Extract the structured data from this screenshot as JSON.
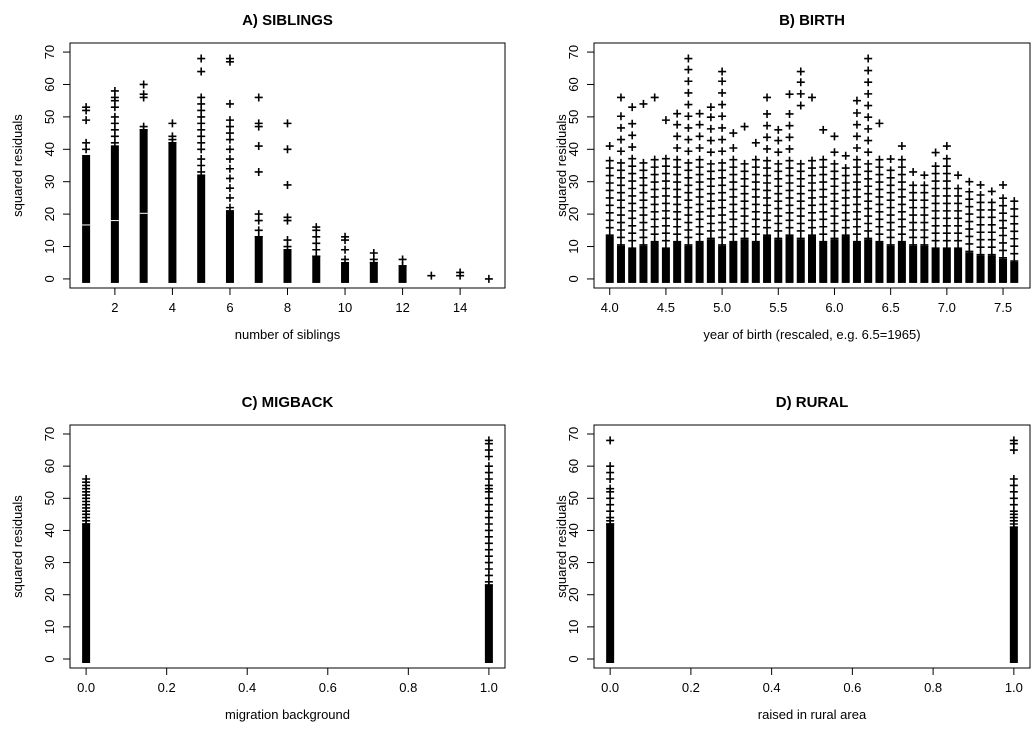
{
  "figure_title": "",
  "colors": {
    "marks": "#000000",
    "background": "#ffffff"
  },
  "chart_data": [
    {
      "type": "scatter",
      "marker": "plus",
      "title": "A) SIBLINGS",
      "xlabel": "number of siblings",
      "ylabel": "squared residuals",
      "xlim": [
        1,
        15
      ],
      "ylim": [
        0,
        70
      ],
      "xticks": [
        2,
        4,
        6,
        8,
        10,
        12,
        14
      ],
      "yticks": [
        0,
        10,
        20,
        30,
        40,
        50,
        60,
        70
      ],
      "dense_ranges": [
        {
          "x": 1,
          "y": [
            0,
            37
          ]
        },
        {
          "x": 2,
          "y": [
            0,
            40
          ]
        },
        {
          "x": 3,
          "y": [
            0,
            45
          ]
        },
        {
          "x": 4,
          "y": [
            0,
            41
          ]
        },
        {
          "x": 5,
          "y": [
            0,
            31
          ]
        },
        {
          "x": 6,
          "y": [
            0,
            20
          ]
        },
        {
          "x": 7,
          "y": [
            0,
            12
          ]
        },
        {
          "x": 8,
          "y": [
            0,
            8
          ]
        },
        {
          "x": 9,
          "y": [
            0,
            6
          ]
        },
        {
          "x": 10,
          "y": [
            0,
            4
          ]
        },
        {
          "x": 11,
          "y": [
            0,
            4
          ]
        },
        {
          "x": 12,
          "y": [
            0,
            3
          ]
        }
      ],
      "points": [
        [
          1,
          53
        ],
        [
          1,
          52
        ],
        [
          1,
          49
        ],
        [
          1,
          42
        ],
        [
          1,
          40
        ],
        [
          2,
          58
        ],
        [
          2,
          56
        ],
        [
          2,
          55
        ],
        [
          2,
          53
        ],
        [
          2,
          50
        ],
        [
          2,
          48
        ],
        [
          2,
          46
        ],
        [
          2,
          44
        ],
        [
          2,
          42
        ],
        [
          3,
          60
        ],
        [
          3,
          57
        ],
        [
          3,
          56
        ],
        [
          3,
          47
        ],
        [
          3,
          46
        ],
        [
          4,
          48
        ],
        [
          4,
          44
        ],
        [
          4,
          43
        ],
        [
          4,
          42
        ],
        [
          5,
          68
        ],
        [
          5,
          64
        ],
        [
          5,
          56
        ],
        [
          5,
          54
        ],
        [
          5,
          52
        ],
        [
          5,
          50
        ],
        [
          5,
          48
        ],
        [
          5,
          46
        ],
        [
          5,
          44
        ],
        [
          5,
          42
        ],
        [
          5,
          40
        ],
        [
          5,
          37
        ],
        [
          5,
          35
        ],
        [
          5,
          33
        ],
        [
          6,
          68
        ],
        [
          6,
          67
        ],
        [
          6,
          54
        ],
        [
          6,
          49
        ],
        [
          6,
          47
        ],
        [
          6,
          45
        ],
        [
          6,
          43
        ],
        [
          6,
          40
        ],
        [
          6,
          37
        ],
        [
          6,
          34
        ],
        [
          6,
          31
        ],
        [
          6,
          28
        ],
        [
          6,
          25
        ],
        [
          6,
          22
        ],
        [
          7,
          56
        ],
        [
          7,
          48
        ],
        [
          7,
          47
        ],
        [
          7,
          41
        ],
        [
          7,
          33
        ],
        [
          7,
          20
        ],
        [
          7,
          18
        ],
        [
          7,
          15
        ],
        [
          7,
          13
        ],
        [
          8,
          48
        ],
        [
          8,
          40
        ],
        [
          8,
          29
        ],
        [
          8,
          19
        ],
        [
          8,
          18
        ],
        [
          8,
          12
        ],
        [
          8,
          10
        ],
        [
          9,
          16
        ],
        [
          9,
          15
        ],
        [
          9,
          13
        ],
        [
          9,
          11
        ],
        [
          9,
          9
        ],
        [
          9,
          7
        ],
        [
          10,
          13
        ],
        [
          10,
          12
        ],
        [
          10,
          9
        ],
        [
          10,
          6
        ],
        [
          11,
          8
        ],
        [
          11,
          6
        ],
        [
          11,
          5
        ],
        [
          12,
          6
        ],
        [
          12,
          4
        ],
        [
          13,
          1
        ],
        [
          14,
          2
        ],
        [
          14,
          1
        ],
        [
          15,
          0
        ]
      ]
    },
    {
      "type": "scatter",
      "marker": "plus",
      "title": "B) BIRTH",
      "xlabel": "year of birth (rescaled, e.g. 6.5=1965)",
      "ylabel": "squared residuals",
      "xlim": [
        4.0,
        7.6
      ],
      "ylim": [
        0,
        70
      ],
      "xticks": [
        4.0,
        4.5,
        5.0,
        5.5,
        6.0,
        6.5,
        7.0,
        7.5
      ],
      "yticks": [
        0,
        10,
        20,
        30,
        40,
        50,
        60,
        70
      ],
      "x_step": 0.1,
      "dense_ranges": [
        {
          "x": 4.0,
          "y": [
            0,
            12
          ]
        },
        {
          "x": 4.1,
          "y": [
            0,
            9
          ]
        },
        {
          "x": 4.2,
          "y": [
            0,
            8
          ]
        },
        {
          "x": 4.3,
          "y": [
            0,
            9
          ]
        },
        {
          "x": 4.4,
          "y": [
            0,
            10
          ]
        },
        {
          "x": 4.5,
          "y": [
            0,
            8
          ]
        },
        {
          "x": 4.6,
          "y": [
            0,
            10
          ]
        },
        {
          "x": 4.7,
          "y": [
            0,
            9
          ]
        },
        {
          "x": 4.8,
          "y": [
            0,
            10
          ]
        },
        {
          "x": 4.9,
          "y": [
            0,
            11
          ]
        },
        {
          "x": 5.0,
          "y": [
            0,
            9
          ]
        },
        {
          "x": 5.1,
          "y": [
            0,
            10
          ]
        },
        {
          "x": 5.2,
          "y": [
            0,
            11
          ]
        },
        {
          "x": 5.3,
          "y": [
            0,
            10
          ]
        },
        {
          "x": 5.4,
          "y": [
            0,
            12
          ]
        },
        {
          "x": 5.5,
          "y": [
            0,
            11
          ]
        },
        {
          "x": 5.6,
          "y": [
            0,
            12
          ]
        },
        {
          "x": 5.7,
          "y": [
            0,
            11
          ]
        },
        {
          "x": 5.8,
          "y": [
            0,
            12
          ]
        },
        {
          "x": 5.9,
          "y": [
            0,
            10
          ]
        },
        {
          "x": 6.0,
          "y": [
            0,
            11
          ]
        },
        {
          "x": 6.1,
          "y": [
            0,
            12
          ]
        },
        {
          "x": 6.2,
          "y": [
            0,
            10
          ]
        },
        {
          "x": 6.3,
          "y": [
            0,
            11
          ]
        },
        {
          "x": 6.4,
          "y": [
            0,
            10
          ]
        },
        {
          "x": 6.5,
          "y": [
            0,
            9
          ]
        },
        {
          "x": 6.6,
          "y": [
            0,
            10
          ]
        },
        {
          "x": 6.7,
          "y": [
            0,
            9
          ]
        },
        {
          "x": 6.8,
          "y": [
            0,
            9
          ]
        },
        {
          "x": 6.9,
          "y": [
            0,
            8
          ]
        },
        {
          "x": 7.0,
          "y": [
            0,
            8
          ]
        },
        {
          "x": 7.1,
          "y": [
            0,
            8
          ]
        },
        {
          "x": 7.2,
          "y": [
            0,
            7
          ]
        },
        {
          "x": 7.3,
          "y": [
            0,
            6
          ]
        },
        {
          "x": 7.4,
          "y": [
            0,
            6
          ]
        },
        {
          "x": 7.5,
          "y": [
            0,
            5
          ]
        },
        {
          "x": 7.6,
          "y": [
            0,
            4
          ]
        }
      ],
      "column_max": [
        [
          4.0,
          41
        ],
        [
          4.1,
          56
        ],
        [
          4.2,
          53
        ],
        [
          4.3,
          54
        ],
        [
          4.4,
          56
        ],
        [
          4.5,
          49
        ],
        [
          4.6,
          51
        ],
        [
          4.7,
          68
        ],
        [
          4.8,
          51
        ],
        [
          4.9,
          53
        ],
        [
          5.0,
          64
        ],
        [
          5.1,
          45
        ],
        [
          5.2,
          47
        ],
        [
          5.3,
          42
        ],
        [
          5.4,
          56
        ],
        [
          5.5,
          46
        ],
        [
          5.6,
          57
        ],
        [
          5.7,
          64
        ],
        [
          5.8,
          56
        ],
        [
          5.9,
          46
        ],
        [
          6.0,
          44
        ],
        [
          6.1,
          38
        ],
        [
          6.2,
          55
        ],
        [
          6.3,
          68
        ],
        [
          6.4,
          48
        ],
        [
          6.5,
          37
        ],
        [
          6.6,
          41
        ],
        [
          6.7,
          33
        ],
        [
          6.8,
          32
        ],
        [
          6.9,
          39
        ],
        [
          7.0,
          41
        ],
        [
          7.1,
          32
        ],
        [
          7.2,
          30
        ],
        [
          7.3,
          29
        ],
        [
          7.4,
          27
        ],
        [
          7.5,
          29
        ],
        [
          7.6,
          24
        ]
      ]
    },
    {
      "type": "scatter",
      "marker": "plus",
      "title": "C) MIGBACK",
      "xlabel": "migration background",
      "ylabel": "squared residuals",
      "xlim": [
        0.0,
        1.0
      ],
      "ylim": [
        0,
        70
      ],
      "xticks": [
        0.0,
        0.2,
        0.4,
        0.6,
        0.8,
        1.0
      ],
      "yticks": [
        0,
        10,
        20,
        30,
        40,
        50,
        60,
        70
      ],
      "dense_ranges": [
        {
          "x": 0.0,
          "y": [
            0,
            41
          ]
        },
        {
          "x": 1.0,
          "y": [
            0,
            22
          ]
        }
      ],
      "points": [
        [
          0.0,
          56
        ],
        [
          0.0,
          55
        ],
        [
          0.0,
          54
        ],
        [
          0.0,
          53
        ],
        [
          0.0,
          52
        ],
        [
          0.0,
          51
        ],
        [
          0.0,
          50
        ],
        [
          0.0,
          49
        ],
        [
          0.0,
          48
        ],
        [
          0.0,
          47
        ],
        [
          0.0,
          46
        ],
        [
          0.0,
          45
        ],
        [
          0.0,
          44
        ],
        [
          0.0,
          43
        ],
        [
          0.0,
          42
        ],
        [
          1.0,
          68
        ],
        [
          1.0,
          67
        ],
        [
          1.0,
          65
        ],
        [
          1.0,
          63
        ],
        [
          1.0,
          60
        ],
        [
          1.0,
          58
        ],
        [
          1.0,
          56
        ],
        [
          1.0,
          54
        ],
        [
          1.0,
          53
        ],
        [
          1.0,
          52
        ],
        [
          1.0,
          50
        ],
        [
          1.0,
          48
        ],
        [
          1.0,
          46
        ],
        [
          1.0,
          44
        ],
        [
          1.0,
          42
        ],
        [
          1.0,
          40
        ],
        [
          1.0,
          38
        ],
        [
          1.0,
          36
        ],
        [
          1.0,
          34
        ],
        [
          1.0,
          32
        ],
        [
          1.0,
          30
        ],
        [
          1.0,
          28
        ],
        [
          1.0,
          26
        ],
        [
          1.0,
          24
        ],
        [
          1.0,
          23
        ]
      ]
    },
    {
      "type": "scatter",
      "marker": "plus",
      "title": "D) RURAL",
      "xlabel": "raised in rural area",
      "ylabel": "squared residuals",
      "xlim": [
        0.0,
        1.0
      ],
      "ylim": [
        0,
        70
      ],
      "xticks": [
        0.0,
        0.2,
        0.4,
        0.6,
        0.8,
        1.0
      ],
      "yticks": [
        0,
        10,
        20,
        30,
        40,
        50,
        60,
        70
      ],
      "dense_ranges": [
        {
          "x": 0.0,
          "y": [
            0,
            41
          ]
        },
        {
          "x": 1.0,
          "y": [
            0,
            40
          ]
        }
      ],
      "points": [
        [
          0.0,
          68
        ],
        [
          0.0,
          60
        ],
        [
          0.0,
          58
        ],
        [
          0.0,
          56
        ],
        [
          0.0,
          53
        ],
        [
          0.0,
          52
        ],
        [
          0.0,
          50
        ],
        [
          0.0,
          48
        ],
        [
          0.0,
          46
        ],
        [
          0.0,
          44
        ],
        [
          0.0,
          43
        ],
        [
          0.0,
          42
        ],
        [
          1.0,
          68
        ],
        [
          1.0,
          67
        ],
        [
          1.0,
          65
        ],
        [
          1.0,
          56
        ],
        [
          1.0,
          54
        ],
        [
          1.0,
          52
        ],
        [
          1.0,
          50
        ],
        [
          1.0,
          48
        ],
        [
          1.0,
          46
        ],
        [
          1.0,
          45
        ],
        [
          1.0,
          44
        ],
        [
          1.0,
          43
        ],
        [
          1.0,
          42
        ],
        [
          1.0,
          41
        ]
      ]
    }
  ]
}
